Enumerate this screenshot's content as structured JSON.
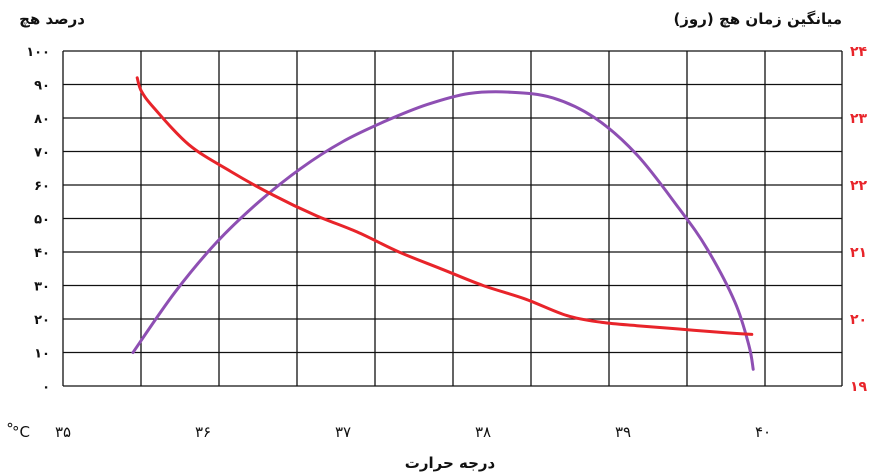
{
  "chart_data": {
    "type": "line",
    "title": "",
    "left_axis_title": "درصد هچ",
    "right_axis_title": "میانگین زمان هچ (روز)",
    "xlabel": "درجه حرارت",
    "x_unit": "°C",
    "xlim": [
      35,
      40.5
    ],
    "ylim_left": [
      0,
      100
    ],
    "ylim_right": [
      19,
      24
    ],
    "x_ticks": [
      35,
      36,
      37,
      38,
      39,
      40
    ],
    "x_tick_labels": [
      "۳۵",
      "۳۶",
      "۳۷",
      "۳۸",
      "۳۹",
      "۴۰"
    ],
    "y_left_ticks": [
      0,
      10,
      20,
      30,
      40,
      50,
      60,
      70,
      80,
      90,
      100
    ],
    "y_left_tick_labels": [
      "۰",
      "۱۰",
      "۲۰",
      "۳۰",
      "۴۰",
      "۵۰",
      "۶۰",
      "۷۰",
      "۸۰",
      "۹۰",
      "۱۰۰"
    ],
    "y_right_ticks": [
      19,
      20,
      21,
      22,
      23,
      24
    ],
    "y_right_tick_labels": [
      "۱۹",
      "۲۰",
      "۲۱",
      "۲۲",
      "۲۳",
      "۲۴"
    ],
    "grid": true,
    "series": [
      {
        "axis": "left",
        "color": "#8e4fb3",
        "x": [
          35.5,
          35.8,
          36.1,
          36.4,
          36.7,
          37.0,
          37.3,
          37.6,
          37.9,
          38.2,
          38.5,
          38.8,
          39.1,
          39.4,
          39.6,
          39.8,
          39.9,
          39.93
        ],
        "y": [
          10,
          28,
          43,
          55,
          65,
          73,
          79,
          84,
          87.3,
          87.7,
          86,
          80,
          69,
          53,
          41,
          25,
          12,
          5
        ]
      },
      {
        "axis": "right",
        "color": "#e8242a",
        "x": [
          35.53,
          35.56,
          35.65,
          35.9,
          36.2,
          36.5,
          36.8,
          37.1,
          37.4,
          37.7,
          38.0,
          38.3,
          38.6,
          38.85,
          39.1,
          39.4,
          39.7,
          39.92
        ],
        "y": [
          23.6,
          23.4,
          23.15,
          22.6,
          22.2,
          21.85,
          21.55,
          21.3,
          21.0,
          20.75,
          20.5,
          20.3,
          20.05,
          19.95,
          19.9,
          19.85,
          19.8,
          19.77
        ]
      }
    ]
  },
  "colors": {
    "left_axis": "#111111",
    "right_axis": "#e8242a",
    "grid": "#111111"
  }
}
